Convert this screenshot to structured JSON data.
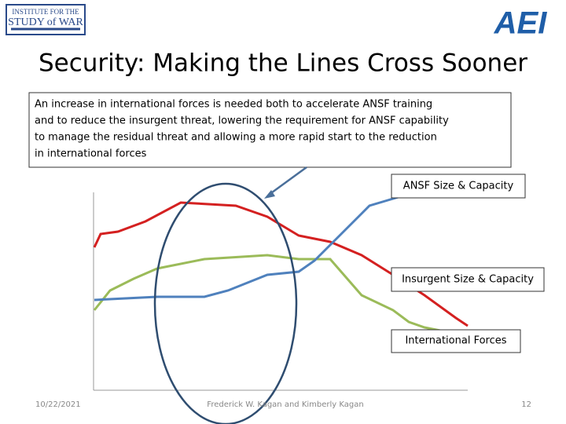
{
  "logos": {
    "isw_line1": "INSTITUTE FOR THE",
    "isw_line2": "STUDY of WAR",
    "aei": "AEI"
  },
  "title": "Security:  Making the Lines Cross Sooner",
  "callout": {
    "lines": [
      "An increase in international forces is needed both to accelerate ANSF training",
      "and to reduce the insurgent threat, lowering the requirement for ANSF capability",
      "to manage the residual threat and allowing a more rapid start to the reduction",
      "in international forces"
    ]
  },
  "labels": {
    "ansf": "ANSF Size & Capacity",
    "insurgent": "Insurgent Size & Capacity",
    "international": "International Forces"
  },
  "footer": {
    "date": "10/22/2021",
    "authors": "Frederick W. Kagan and  Kimberly Kagan",
    "page": "12"
  }
}
